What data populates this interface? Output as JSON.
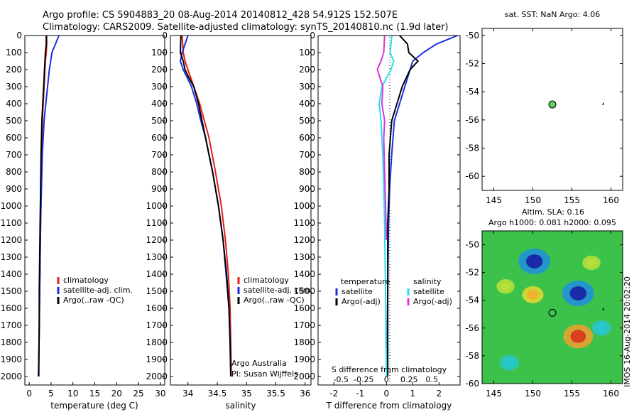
{
  "header": {
    "line1": "Argo profile: CS 5904883_20 08-Aug-2014 20140812_428 54.912S 152.507E",
    "line2": "Climatology: CARS2009. Satellite-adjusted climatology: synTS_20140810.nc (1.9d later)"
  },
  "side_label": "IMOS 16-Aug-2014 20:02:20",
  "colors": {
    "climatology": "#e0201a",
    "satellite": "#1a2ee0",
    "argo": "#000000",
    "salinity_satellite": "#27e0e8",
    "salinity_argo": "#e030e0",
    "marker": "#5ad25a"
  },
  "chart_data": [
    {
      "type": "line",
      "title": "",
      "xlabel": "temperature (deg C)",
      "ylabel": "",
      "xlim": [
        -1,
        31
      ],
      "ylim": [
        2050,
        0
      ],
      "x_ticks": [
        0,
        5,
        10,
        15,
        20,
        25,
        30
      ],
      "y_ticks": [
        0,
        100,
        200,
        300,
        400,
        500,
        600,
        700,
        800,
        900,
        1000,
        1100,
        1200,
        1300,
        1400,
        1500,
        1600,
        1700,
        1800,
        1900,
        2000
      ],
      "legend": [
        "climatology",
        "satellite-adj. clim.",
        "Argo(..raw -QC)"
      ],
      "series": [
        {
          "name": "climatology",
          "color": "#e0201a",
          "depth": [
            0,
            50,
            100,
            150,
            250,
            400,
            500,
            700,
            900,
            1100,
            1300,
            1500,
            1700,
            1900,
            2000
          ],
          "values": [
            4.0,
            4.0,
            3.9,
            3.7,
            3.5,
            3.2,
            3.0,
            2.8,
            2.7,
            2.6,
            2.5,
            2.4,
            2.3,
            2.2,
            2.2
          ]
        },
        {
          "name": "satellite-adj. clim.",
          "color": "#1a2ee0",
          "depth": [
            0,
            50,
            100,
            200,
            300,
            400,
            500,
            700,
            900,
            1100,
            1300,
            1500,
            1700,
            1900,
            2000
          ],
          "values": [
            6.8,
            6.0,
            5.2,
            4.6,
            4.2,
            3.8,
            3.4,
            3.0,
            2.8,
            2.6,
            2.5,
            2.4,
            2.3,
            2.2,
            2.2
          ]
        },
        {
          "name": "Argo(..raw -QC)",
          "color": "#000000",
          "depth": [
            0,
            50,
            100,
            200,
            300,
            400,
            500,
            700,
            900,
            1100,
            1300,
            1500,
            1700,
            1900,
            2000
          ],
          "values": [
            3.9,
            3.9,
            3.7,
            3.5,
            3.3,
            3.1,
            2.9,
            2.7,
            2.6,
            2.5,
            2.4,
            2.3,
            2.3,
            2.2,
            2.1
          ]
        }
      ]
    },
    {
      "type": "line",
      "title": "",
      "xlabel": "salinity",
      "ylabel": "",
      "xlim": [
        33.7,
        36.1
      ],
      "ylim": [
        2050,
        0
      ],
      "x_ticks": [
        34,
        34.5,
        35,
        35.5,
        36
      ],
      "legend": [
        "climatology",
        "satellite-adj. clim.",
        "Argo(..raw -QC)"
      ],
      "annotations": [
        "Argo Australia",
        "PI: Susan Wijffels"
      ],
      "series": [
        {
          "name": "climatology",
          "color": "#e0201a",
          "depth": [
            0,
            100,
            150,
            200,
            300,
            400,
            500,
            600,
            800,
            1000,
            1200,
            1400,
            1600,
            1800,
            2000
          ],
          "values": [
            33.9,
            33.92,
            33.95,
            34.0,
            34.1,
            34.2,
            34.28,
            34.36,
            34.47,
            34.57,
            34.64,
            34.69,
            34.72,
            34.73,
            34.74
          ]
        },
        {
          "name": "satellite-adj. clim.",
          "color": "#1a2ee0",
          "depth": [
            0,
            50,
            100,
            150,
            200,
            300,
            400,
            500,
            600,
            800,
            1000,
            1200,
            1400,
            1600,
            1800,
            2000
          ],
          "values": [
            34.0,
            33.95,
            33.9,
            33.87,
            33.92,
            34.06,
            34.15,
            34.22,
            34.3,
            34.42,
            34.52,
            34.6,
            34.65,
            34.7,
            34.72,
            34.73
          ]
        },
        {
          "name": "Argo(..raw -QC)",
          "color": "#000000",
          "depth": [
            0,
            100,
            150,
            200,
            250,
            300,
            400,
            500,
            600,
            800,
            1000,
            1200,
            1400,
            1600,
            1800,
            2000
          ],
          "values": [
            33.88,
            33.87,
            33.92,
            33.95,
            34.02,
            34.1,
            34.18,
            34.24,
            34.3,
            34.42,
            34.52,
            34.6,
            34.66,
            34.7,
            34.72,
            34.73
          ]
        }
      ]
    },
    {
      "type": "line",
      "title": "",
      "xlabel": "T difference from climatology",
      "xlabel_top": "S difference from climatology",
      "ylabel": "",
      "xlim": [
        -2.6,
        2.8
      ],
      "ylim": [
        2050,
        0
      ],
      "x_ticks": [
        -2,
        -1,
        0,
        1,
        2
      ],
      "x_ticks_top": [
        "-0.5",
        "-0.25",
        "0",
        "0.25",
        "0.5"
      ],
      "legend_temperature_title": "temperature",
      "legend_salinity_title": "salinity",
      "legend_temperature": [
        "satellite",
        "Argo(-adj)"
      ],
      "legend_salinity": [
        "satellite",
        "Argo(-adj)"
      ],
      "series": [
        {
          "name": "satellite",
          "group": "temperature",
          "color": "#1a2ee0",
          "depth": [
            0,
            50,
            100,
            150,
            200,
            300,
            400,
            500,
            700,
            900,
            1100,
            1500,
            2000
          ],
          "values": [
            2.7,
            1.9,
            1.4,
            1.0,
            0.9,
            0.7,
            0.5,
            0.3,
            0.2,
            0.12,
            0.08,
            0.05,
            0.02
          ]
        },
        {
          "name": "Argo(-adj)",
          "group": "temperature",
          "color": "#000000",
          "depth": [
            0,
            50,
            100,
            150,
            200,
            300,
            400,
            500,
            700,
            900,
            1100,
            1500,
            2000
          ],
          "values": [
            0.5,
            0.8,
            0.85,
            1.2,
            0.9,
            0.6,
            0.4,
            0.2,
            0.1,
            0.1,
            0.05,
            0.05,
            0.05
          ]
        },
        {
          "name": "satellite",
          "group": "salinity",
          "color": "#27e0e8",
          "depth": [
            0,
            100,
            150,
            200,
            300,
            400,
            500,
            700,
            900,
            1100,
            1500,
            2000
          ],
          "values": [
            0.06,
            0.04,
            0.08,
            0.05,
            -0.05,
            -0.08,
            -0.06,
            -0.04,
            -0.03,
            -0.02,
            -0.01,
            0.0
          ]
        },
        {
          "name": "Argo(-adj)",
          "group": "salinity",
          "color": "#e030e0",
          "depth": [
            0,
            100,
            150,
            200,
            300,
            400,
            500,
            600,
            800,
            1000,
            1200
          ],
          "values": [
            -0.02,
            -0.03,
            -0.06,
            -0.1,
            -0.04,
            -0.05,
            -0.02,
            -0.03,
            -0.02,
            -0.01,
            0.0
          ]
        }
      ]
    },
    {
      "type": "scatter",
      "title": "sat. SST: NaN Argo: 4.06",
      "xlim": [
        143.5,
        161.5
      ],
      "ylim": [
        -61,
        -49.5
      ],
      "x_ticks": [
        145,
        150,
        155,
        160
      ],
      "y_ticks": [
        -50,
        -52,
        -54,
        -56,
        -58,
        -60
      ],
      "points": [
        {
          "x": 152.5,
          "y": -54.9
        }
      ]
    },
    {
      "type": "heatmap",
      "title_line1": "Altim. SLA: 0.16",
      "title_line2": "Argo h1000: 0.081 h2000: 0.095",
      "xlim": [
        143.5,
        161.5
      ],
      "ylim": [
        -60,
        -49
      ],
      "x_ticks": [
        145,
        150,
        155,
        160
      ],
      "y_ticks": [
        -50,
        -52,
        -54,
        -56,
        -58,
        -60
      ],
      "points": [
        {
          "x": 152.5,
          "y": -54.9
        }
      ],
      "features": [
        {
          "x": 150.2,
          "y": -51.2,
          "value": -1.0
        },
        {
          "x": 155.8,
          "y": -53.5,
          "value": -1.0
        },
        {
          "x": 155.8,
          "y": -56.6,
          "value": 0.9
        },
        {
          "x": 150.0,
          "y": -53.6,
          "value": 0.5
        },
        {
          "x": 146.5,
          "y": -53.0,
          "value": 0.35
        },
        {
          "x": 147.0,
          "y": -58.5,
          "value": -0.4
        },
        {
          "x": 157.5,
          "y": -51.3,
          "value": 0.35
        },
        {
          "x": 158.8,
          "y": -56.0,
          "value": -0.4
        }
      ]
    }
  ]
}
